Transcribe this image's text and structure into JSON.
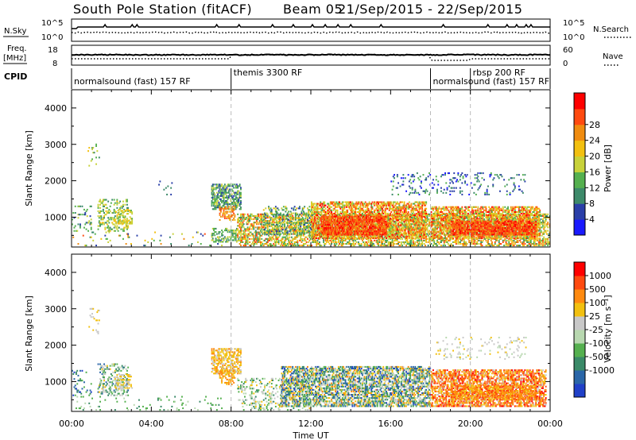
{
  "header": {
    "station": "South Pole Station (fitACF)",
    "beam": "Beam 05",
    "date_range": "21/Sep/2015 - 22/Sep/2015"
  },
  "summary_panels": {
    "nsky": {
      "label": "N.Sky",
      "left_ticks": [
        "10^5",
        "10^0"
      ],
      "right_ticks": [
        "10^5",
        "10^0"
      ],
      "right_label": "N.Search"
    },
    "freq": {
      "label_top": "Freq.",
      "label_unit": "[MHz]",
      "left_ticks": [
        "18",
        "8"
      ],
      "right_ticks": [
        "60",
        "0"
      ],
      "right_label": "Nave"
    },
    "cpid": {
      "label": "CPID"
    }
  },
  "cpid_segments": [
    {
      "name": "normalsound (fast) 157 RF",
      "start": 0,
      "end": 8
    },
    {
      "name": "themis 3300 RF",
      "start": 8,
      "end": 18
    },
    {
      "name": "normalsound (fast) 157 RF",
      "start": 18,
      "end": 24
    },
    {
      "name": "rbsp 200 RF",
      "start": 20,
      "end": 24
    }
  ],
  "axes": {
    "x_label": "Time UT",
    "x_ticks": [
      "00:00",
      "04:00",
      "08:00",
      "12:00",
      "16:00",
      "20:00",
      "00:00"
    ],
    "y_label": "Slant Range [km]",
    "y_ticks": [
      "1000",
      "2000",
      "3000",
      "4000"
    ]
  },
  "colorbars": {
    "power": {
      "label": "Power [dB]",
      "ticks": [
        "4",
        "8",
        "12",
        "16",
        "20",
        "24",
        "28"
      ],
      "colors": [
        "#1a1aff",
        "#2a3fa8",
        "#3d8a6a",
        "#55b04f",
        "#c8d23a",
        "#f2c010",
        "#f08c10",
        "#ff4a10",
        "#ff0000"
      ]
    },
    "velocity": {
      "label": "Velocity [m s⁻¹]",
      "ticks": [
        "1000",
        "500",
        "100",
        "25",
        "-25",
        "-100",
        "-500",
        "-1000"
      ],
      "colors": [
        "#2040c8",
        "#2a66a8",
        "#3a8a68",
        "#55b04f",
        "#b8d8b0",
        "#c8c8c8",
        "#f2c010",
        "#ff8a10",
        "#ff4a10",
        "#ff0000"
      ]
    }
  },
  "chart_data": [
    {
      "type": "heatmap",
      "title": "Power",
      "xlabel": "Time UT",
      "ylabel": "Slant Range [km]",
      "xlim_hours": [
        0,
        24
      ],
      "ylim_km": [
        180,
        4500
      ],
      "colorbar_range_db": [
        0,
        30
      ],
      "scatter_regions": [
        {
          "t": [
            0.0,
            1.0
          ],
          "r": [
            600,
            1300
          ],
          "density": 0.12,
          "levels": [
            1,
            4
          ]
        },
        {
          "t": [
            0.8,
            1.4
          ],
          "r": [
            2300,
            3000
          ],
          "density": 0.1,
          "levels": [
            2,
            5
          ]
        },
        {
          "t": [
            1.3,
            2.8
          ],
          "r": [
            600,
            1500
          ],
          "density": 0.3,
          "levels": [
            2,
            5
          ]
        },
        {
          "t": [
            2.2,
            3.0
          ],
          "r": [
            800,
            1200
          ],
          "density": 0.4,
          "levels": [
            3,
            5
          ]
        },
        {
          "t": [
            0.0,
            7.5
          ],
          "r": [
            200,
            600
          ],
          "density": 0.05,
          "levels": [
            0,
            7
          ]
        },
        {
          "t": [
            4.3,
            5.0
          ],
          "r": [
            1600,
            2000
          ],
          "density": 0.05,
          "levels": [
            1,
            2
          ]
        },
        {
          "t": [
            7.0,
            8.5
          ],
          "r": [
            1200,
            1900
          ],
          "density": 0.55,
          "levels": [
            1,
            4
          ]
        },
        {
          "t": [
            7.4,
            8.2
          ],
          "r": [
            900,
            1300
          ],
          "density": 0.45,
          "levels": [
            5,
            7
          ]
        },
        {
          "t": [
            7.0,
            8.3
          ],
          "r": [
            300,
            700
          ],
          "density": 0.35,
          "levels": [
            2,
            4
          ]
        },
        {
          "t": [
            8.3,
            24.0
          ],
          "r": [
            200,
            1100
          ],
          "density": 0.5,
          "levels": [
            2,
            7
          ]
        },
        {
          "t": [
            9.6,
            12.2
          ],
          "r": [
            500,
            1300
          ],
          "density": 0.3,
          "levels": [
            1,
            5
          ]
        },
        {
          "t": [
            12.0,
            17.8
          ],
          "r": [
            400,
            1400
          ],
          "density": 0.6,
          "levels": [
            3,
            8
          ]
        },
        {
          "t": [
            12.5,
            15.8
          ],
          "r": [
            500,
            1000
          ],
          "density": 0.75,
          "levels": [
            6,
            8
          ]
        },
        {
          "t": [
            18.0,
            23.5
          ],
          "r": [
            400,
            1300
          ],
          "density": 0.6,
          "levels": [
            3,
            8
          ]
        },
        {
          "t": [
            19.0,
            23.3
          ],
          "r": [
            500,
            900
          ],
          "density": 0.7,
          "levels": [
            6,
            8
          ]
        },
        {
          "t": [
            16.0,
            22.8
          ],
          "r": [
            1600,
            2200
          ],
          "density": 0.12,
          "levels": [
            0,
            3
          ]
        }
      ]
    },
    {
      "type": "heatmap",
      "title": "Velocity",
      "xlabel": "Time UT",
      "ylabel": "Slant Range [km]",
      "xlim_hours": [
        0,
        24
      ],
      "ylim_km": [
        180,
        4500
      ],
      "colorbar_range_ms": [
        -1000,
        1000
      ],
      "scatter_regions": [
        {
          "t": [
            0.0,
            1.0
          ],
          "r": [
            600,
            1300
          ],
          "density": 0.12,
          "levels": [
            0,
            3
          ]
        },
        {
          "t": [
            0.8,
            1.4
          ],
          "r": [
            2300,
            3000
          ],
          "density": 0.1,
          "levels": [
            5,
            6
          ]
        },
        {
          "t": [
            1.3,
            2.8
          ],
          "r": [
            600,
            1500
          ],
          "density": 0.3,
          "levels": [
            1,
            6
          ]
        },
        {
          "t": [
            2.2,
            3.0
          ],
          "r": [
            800,
            1200
          ],
          "density": 0.4,
          "levels": [
            5,
            6
          ]
        },
        {
          "t": [
            0.0,
            7.5
          ],
          "r": [
            200,
            600
          ],
          "density": 0.05,
          "levels": [
            2,
            4
          ]
        },
        {
          "t": [
            7.0,
            8.5
          ],
          "r": [
            1200,
            1900
          ],
          "density": 0.55,
          "levels": [
            5,
            7
          ]
        },
        {
          "t": [
            7.4,
            8.2
          ],
          "r": [
            900,
            1300
          ],
          "density": 0.45,
          "levels": [
            6,
            7
          ]
        },
        {
          "t": [
            8.3,
            12.0
          ],
          "r": [
            200,
            1100
          ],
          "density": 0.25,
          "levels": [
            2,
            6
          ]
        },
        {
          "t": [
            10.5,
            18.0
          ],
          "r": [
            300,
            1400
          ],
          "density": 0.6,
          "levels": [
            0,
            7
          ]
        },
        {
          "t": [
            18.0,
            23.8
          ],
          "r": [
            300,
            1300
          ],
          "density": 0.6,
          "levels": [
            5,
            9
          ]
        },
        {
          "t": [
            19.0,
            23.3
          ],
          "r": [
            500,
            900
          ],
          "density": 0.6,
          "levels": [
            6,
            8
          ]
        },
        {
          "t": [
            18.2,
            22.8
          ],
          "r": [
            1600,
            2200
          ],
          "density": 0.1,
          "levels": [
            4,
            6
          ]
        }
      ]
    }
  ]
}
